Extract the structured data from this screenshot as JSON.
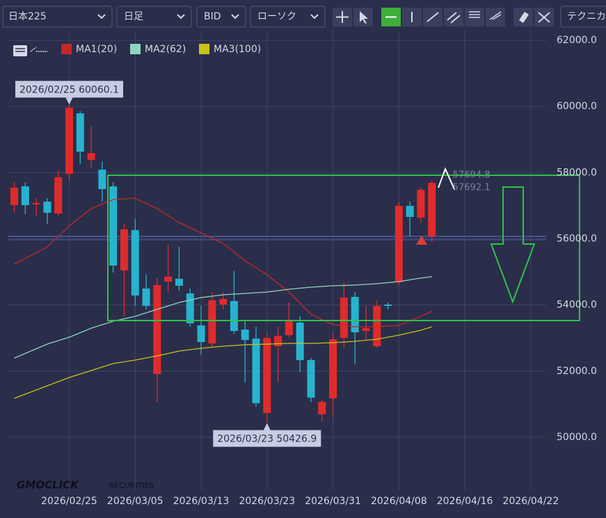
{
  "toolbar": {
    "symbol": "日本225",
    "period": "日足",
    "price_type": "BID",
    "chart_style": "ローソク",
    "technical": "テクニカ"
  },
  "chart_data": {
    "type": "candlestick",
    "x": [
      -5,
      -4,
      -3,
      -2,
      -1,
      0,
      1,
      2,
      3,
      4,
      5,
      6,
      7,
      8,
      9,
      10,
      11,
      12,
      13,
      14,
      15,
      16,
      17,
      18,
      19,
      20,
      21,
      22,
      23,
      24,
      25,
      26,
      27,
      28,
      29,
      30,
      31,
      32,
      33
    ],
    "open": [
      57019,
      57587,
      57040,
      57124,
      56767,
      57965,
      59793,
      58385,
      58091,
      57587,
      55044,
      56263,
      54497,
      51912,
      54707,
      54792,
      54350,
      53383,
      52837,
      54014,
      54119,
      53257,
      52984,
      50736,
      52753,
      53089,
      53468,
      52333,
      50693,
      51177,
      53005,
      54245,
      53215,
      52753,
      54014,
      54687,
      56998,
      56641,
      56074
    ],
    "high": [
      57713,
      57713,
      57229,
      57229,
      58070,
      60060.1,
      59856,
      59394,
      58343,
      57713,
      56452,
      56599,
      54918,
      54813,
      55821,
      55758,
      54497,
      53972,
      54392,
      54392,
      55023,
      53551,
      53341,
      53131,
      53341,
      54077,
      53657,
      52396,
      51135,
      53131,
      54687,
      54392,
      53972,
      54140,
      54077,
      57124,
      57124,
      57545,
      57760
    ],
    "low": [
      56809,
      56746,
      56704,
      56452,
      56704,
      57755,
      58259,
      58133,
      57124,
      54981,
      53657,
      53972,
      53867,
      51071,
      54392,
      54434,
      53341,
      52501,
      52711,
      53867,
      53131,
      51660,
      50925,
      50426.9,
      51660,
      53026,
      51975,
      51071,
      50483,
      50609,
      52711,
      52207,
      52921,
      52711,
      53867,
      54602,
      56074,
      56494,
      55900
    ],
    "close": [
      57545,
      57019,
      57082,
      56788,
      57860,
      59961,
      58637,
      58595,
      57503,
      55191,
      56284,
      54287,
      53972,
      54602,
      54855,
      54582,
      53447,
      52879,
      54140,
      54182,
      53215,
      52942,
      51030,
      53005,
      53068,
      53510,
      52333,
      51198,
      51071,
      52963,
      54224,
      53173,
      53299,
      53972,
      53972,
      56998,
      56662,
      57482,
      57692.1
    ],
    "up_color": "#e02b2b",
    "down_color": "#27b3cf",
    "series": [
      {
        "name": "MA1(20)",
        "color": "#c62828",
        "x": [
          -5,
          -2,
          0,
          2,
          4,
          6,
          8,
          10,
          12,
          14,
          16,
          18,
          20,
          22,
          24,
          26,
          28,
          30,
          32,
          33
        ],
        "values": [
          55233,
          55758,
          56389,
          56914,
          57187,
          57229,
          56914,
          56494,
          56179,
          55863,
          55338,
          54918,
          54392,
          53720,
          53404,
          53341,
          53341,
          53383,
          53657,
          53804
        ]
      },
      {
        "name": "MA2(62)",
        "color": "#8fd6c0",
        "x": [
          -5,
          -2,
          0,
          2,
          4,
          6,
          8,
          10,
          12,
          14,
          16,
          18,
          20,
          22,
          24,
          26,
          28,
          30,
          32,
          33
        ],
        "values": [
          52395,
          52816,
          53026,
          53299,
          53509,
          53656,
          53867,
          54077,
          54224,
          54308,
          54350,
          54392,
          54476,
          54539,
          54581,
          54602,
          54644,
          54707,
          54813,
          54855
        ]
      },
      {
        "name": "MA3(100)",
        "color": "#c9c21a",
        "x": [
          -5,
          -2,
          0,
          2,
          4,
          6,
          8,
          10,
          12,
          14,
          16,
          18,
          20,
          22,
          24,
          26,
          28,
          30,
          32,
          33
        ],
        "values": [
          51177,
          51555,
          51807,
          52017,
          52228,
          52333,
          52459,
          52606,
          52690,
          52753,
          52795,
          52816,
          52837,
          52837,
          52858,
          52900,
          52963,
          53089,
          53236,
          53341
        ]
      }
    ],
    "xlim": [
      -6.3,
      43.4
    ],
    "xticks": [
      {
        "value": 0,
        "label": "2026/02/25"
      },
      {
        "value": 6,
        "label": "2026/03/05"
      },
      {
        "value": 12,
        "label": "2026/03/13"
      },
      {
        "value": 18,
        "label": "2026/03/23"
      },
      {
        "value": 24,
        "label": "2026/03/31"
      },
      {
        "value": 30,
        "label": "2026/04/08"
      },
      {
        "value": 36,
        "label": "2026/04/16"
      },
      {
        "value": 42,
        "label": "2026/04/22"
      }
    ],
    "ylim": [
      48400,
      62380
    ],
    "yticks": [
      {
        "value": 50000,
        "label": "50000.0"
      },
      {
        "value": 52000,
        "label": "52000.0"
      },
      {
        "value": 54000,
        "label": "54000.0"
      },
      {
        "value": 56000,
        "label": "56000.0"
      },
      {
        "value": 58000,
        "label": "58000.0"
      },
      {
        "value": 60000,
        "label": "60000.0"
      },
      {
        "value": 62000,
        "label": "62000.0"
      }
    ],
    "grid": true,
    "annotations": [
      "2026/02/25 60060.1",
      "2026/03/23 50426.9"
    ],
    "last_prices": [
      57694.8,
      57692.1
    ],
    "watermark": {
      "brand": "GMOCLICK",
      "suffix": "SECURITIES"
    }
  }
}
